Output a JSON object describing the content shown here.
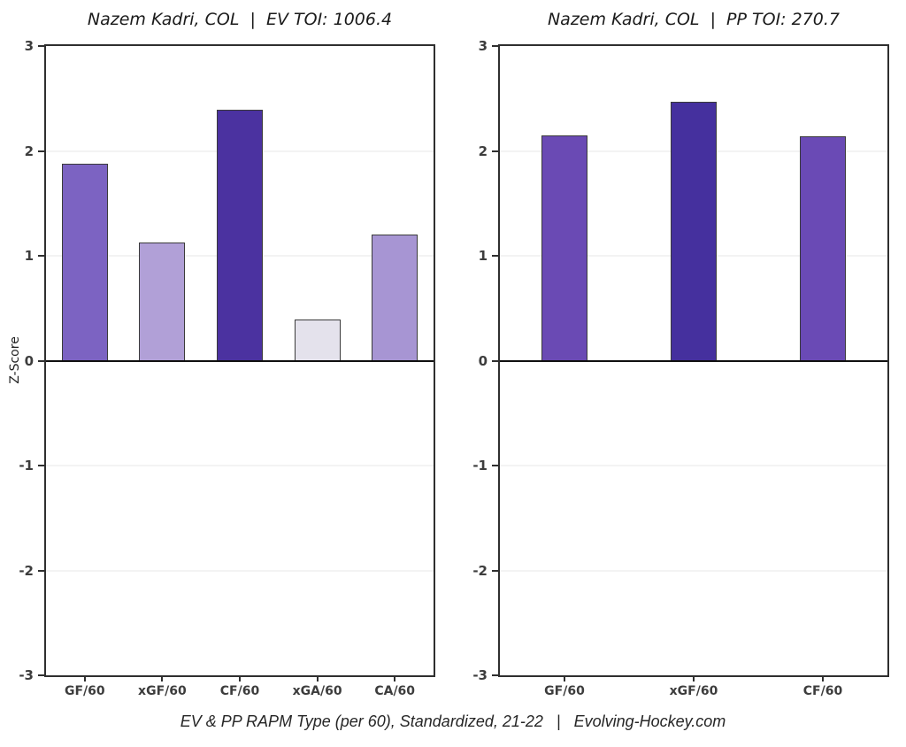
{
  "caption": "EV & PP RAPM Type (per 60), Standardized, 21-22   |   Evolving-Hockey.com",
  "y_axis": {
    "label": "Z-Score"
  },
  "chart_data": [
    {
      "type": "bar",
      "title": "Nazem Kadri, COL  |  EV TOI: 1006.4",
      "player": "Nazem Kadri",
      "team": "COL",
      "strength": "EV",
      "toi": 1006.4,
      "categories": [
        "GF/60",
        "xGF/60",
        "CF/60",
        "xGA/60",
        "CA/60"
      ],
      "values": [
        1.88,
        1.13,
        2.39,
        0.39,
        1.2
      ],
      "bar_colors": [
        "#7C63C2",
        "#B1A0D7",
        "#4B32A0",
        "#E4E2EC",
        "#A795D3"
      ],
      "ylabel": "Z-Score",
      "ylim": [
        -3,
        3
      ],
      "yticks": [
        3,
        2,
        1,
        0,
        -1,
        -2,
        -3
      ],
      "grid": true,
      "zero_line": true,
      "legend": "none"
    },
    {
      "type": "bar",
      "title": "Nazem Kadri, COL  |  PP TOI: 270.7",
      "player": "Nazem Kadri",
      "team": "COL",
      "strength": "PP",
      "toi": 270.7,
      "categories": [
        "GF/60",
        "xGF/60",
        "CF/60"
      ],
      "values": [
        2.15,
        2.47,
        2.14
      ],
      "bar_colors": [
        "#6A4AB4",
        "#45309E",
        "#6A4AB5"
      ],
      "ylabel": "",
      "ylim": [
        -3,
        3
      ],
      "yticks": [
        3,
        2,
        1,
        0,
        -1,
        -2,
        -3
      ],
      "grid": true,
      "zero_line": true,
      "legend": "none"
    }
  ],
  "colors": {
    "panel_border": "#2f2f2f",
    "gridline": "#e7e7e7",
    "zero_line": "#101010",
    "bar_border": "#3a3a3a",
    "tick_label": "#3d3d3d",
    "title": "#1b1b1b",
    "caption": "#262626",
    "background": "#ffffff"
  }
}
